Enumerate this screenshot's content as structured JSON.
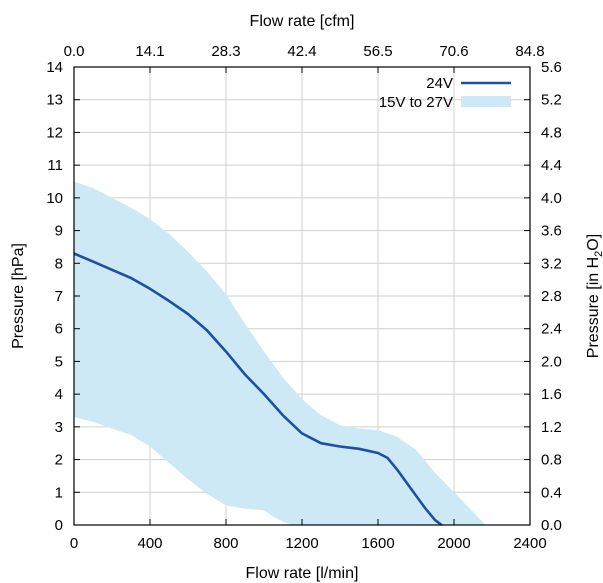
{
  "chart_data": {
    "type": "line",
    "xlabel": "Flow rate [l/min]",
    "x2label": "Flow rate [cfm]",
    "ylabel": "Pressure [hPa]",
    "y2label_parts": [
      "Pressure [in H",
      "2",
      "O]"
    ],
    "xlim": [
      0,
      2400
    ],
    "ylim": [
      0,
      14
    ],
    "y2lim": [
      0,
      5.6
    ],
    "x_ticks": [
      "0",
      "400",
      "800",
      "1200",
      "1600",
      "2000",
      "2400"
    ],
    "x2_ticks": [
      "0.0",
      "14.1",
      "28.3",
      "42.4",
      "56.5",
      "70.6",
      "84.8"
    ],
    "y_ticks": [
      "0",
      "1",
      "2",
      "3",
      "4",
      "5",
      "6",
      "7",
      "8",
      "9",
      "10",
      "11",
      "12",
      "13",
      "14"
    ],
    "y2_ticks": [
      "0.0",
      "0.4",
      "0.8",
      "1.2",
      "1.6",
      "2.0",
      "2.4",
      "2.8",
      "3.2",
      "3.6",
      "4.0",
      "4.4",
      "4.8",
      "5.2",
      "5.6"
    ],
    "grid": true,
    "legend_position": "top-right",
    "colors": {
      "line": "#1f4fa3",
      "band": "#cde9f6",
      "grid": "#d0d0d0"
    },
    "series": [
      {
        "name": "24V",
        "kind": "line",
        "x": [
          0,
          100,
          200,
          300,
          400,
          500,
          600,
          700,
          800,
          900,
          1000,
          1100,
          1200,
          1300,
          1400,
          1500,
          1600,
          1650,
          1700,
          1750,
          1800,
          1850,
          1900,
          1935
        ],
        "y": [
          8.3,
          8.05,
          7.8,
          7.55,
          7.22,
          6.85,
          6.45,
          5.95,
          5.3,
          4.6,
          4.0,
          3.35,
          2.8,
          2.5,
          2.4,
          2.33,
          2.2,
          2.05,
          1.7,
          1.3,
          0.9,
          0.5,
          0.15,
          0.0
        ]
      },
      {
        "name": "15V to 27V",
        "kind": "band",
        "upper_x": [
          0,
          100,
          200,
          300,
          400,
          500,
          600,
          700,
          800,
          900,
          1000,
          1100,
          1200,
          1300,
          1400,
          1500,
          1600,
          1700,
          1800,
          1900,
          2000,
          2100,
          2165
        ],
        "upper_y": [
          10.5,
          10.3,
          10.0,
          9.7,
          9.35,
          8.9,
          8.35,
          7.75,
          7.05,
          6.15,
          5.3,
          4.5,
          3.85,
          3.35,
          3.05,
          2.95,
          2.9,
          2.7,
          2.3,
          1.6,
          1.0,
          0.4,
          0.0
        ],
        "lower_x": [
          0,
          100,
          200,
          300,
          400,
          500,
          600,
          700,
          800,
          900,
          1000,
          1050,
          1100,
          1150
        ],
        "lower_y": [
          3.3,
          3.15,
          2.95,
          2.75,
          2.4,
          1.9,
          1.4,
          0.95,
          0.6,
          0.5,
          0.45,
          0.25,
          0.1,
          0.0
        ]
      }
    ]
  }
}
